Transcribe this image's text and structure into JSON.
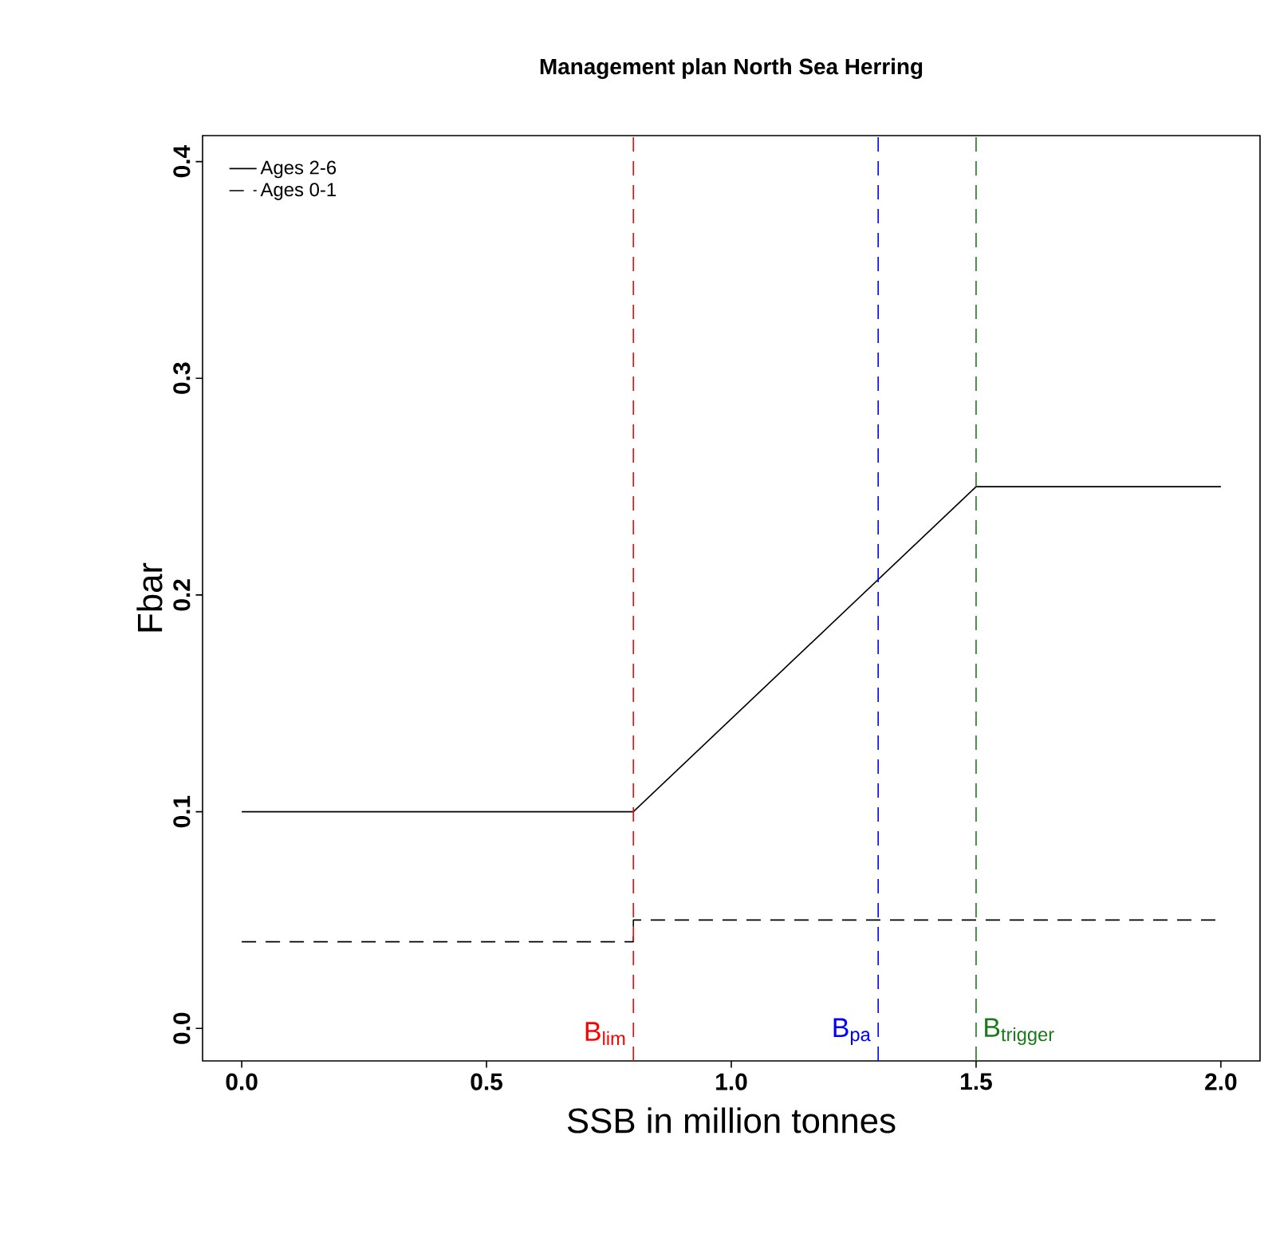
{
  "chart_data": {
    "type": "line",
    "title": "Management plan North Sea Herring",
    "xlabel": "SSB in million tonnes",
    "ylabel": "Fbar",
    "series": [
      {
        "name": "Ages 2-6",
        "color": "#000000",
        "line_style": "solid",
        "x": [
          0,
          0.8,
          1.5,
          2.0
        ],
        "values": [
          0.1,
          0.1,
          0.25,
          0.25
        ]
      },
      {
        "name": "Ages 0-1",
        "color": "#000000",
        "line_style": "dashed",
        "x": [
          0,
          0.8,
          0.8,
          2.0
        ],
        "values": [
          0.04,
          0.04,
          0.05,
          0.05
        ]
      }
    ],
    "xlim": [
      -0.08,
      2.08
    ],
    "ylim": [
      -0.015,
      0.412
    ],
    "xticks": [
      {
        "value": 0,
        "label": "0.0"
      },
      0.5,
      {
        "value": 1,
        "label": "1.0"
      },
      1.5,
      {
        "value": 2,
        "label": "2.0"
      }
    ],
    "yticks": [
      {
        "value": 0,
        "label": "0.0"
      },
      0.1,
      0.2,
      0.3,
      0.4
    ],
    "ref_lines": [
      {
        "axis": "x",
        "value": 0.8,
        "label": "B$_{lim}$",
        "color": "#ff0000",
        "line_style": "dashed"
      },
      {
        "axis": "x",
        "value": 1.3,
        "label": "B$_{pa}$",
        "color": "#0000ff",
        "line_style": "dashed"
      },
      {
        "axis": "x",
        "value": 1.5,
        "label": "B$_{trigger}$",
        "color": "#1a7a1a",
        "line_style": "dashed"
      }
    ],
    "legend": "top left",
    "grid": false,
    "marker": "none"
  }
}
